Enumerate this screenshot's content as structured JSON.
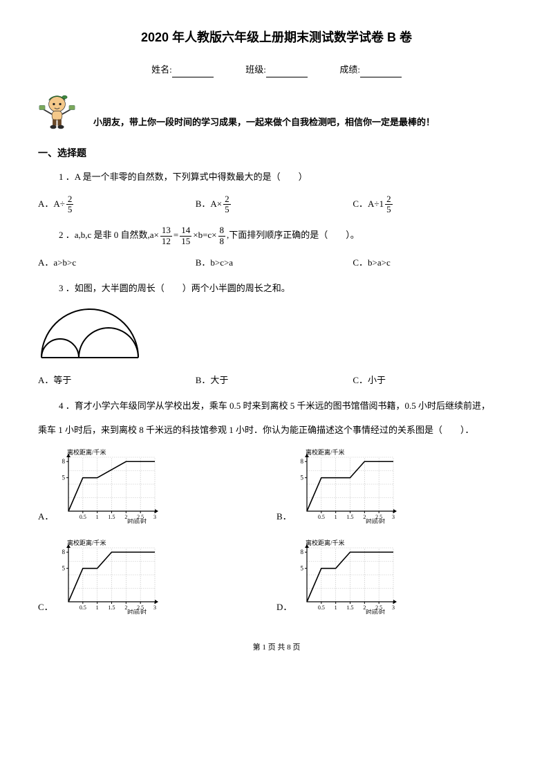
{
  "title": "2020 年人教版六年级上册期末测试数学试卷 B 卷",
  "info": {
    "name_label": "姓名:",
    "class_label": "班级:",
    "score_label": "成绩:"
  },
  "encouragement": "小朋友，带上你一段时间的学习成果，一起来做个自我检测吧，相信你一定是最棒的！",
  "section1_heading": "一、选择题",
  "q1": {
    "text": "1 ．A 是一个非零的自然数，下列算式中得数最大的是（　　）",
    "frac": {
      "num": "2",
      "den": "5"
    },
    "a_prefix": "A．A÷",
    "b_prefix": "B．A×",
    "c_prefix": "C．A÷1"
  },
  "q2": {
    "prefix": "2 ．a,b,c 是非 0 自然数,a×",
    "frac1": {
      "num": "13",
      "den": "12"
    },
    "eq": "=",
    "frac2": {
      "num": "14",
      "den": "15"
    },
    "mid": "×b=c×",
    "frac3": {
      "num": "8",
      "den": "8"
    },
    "suffix": ",下面排列顺序正确的是（　　）。",
    "choice_a": "A．a>b>c",
    "choice_b": "B．b>c>a",
    "choice_c": "C．b>a>c"
  },
  "q3": {
    "text": "3 ．如图，大半圆的周长（　　）两个小半圆的周长之和。",
    "choice_a": "A．等于",
    "choice_b": "B．大于",
    "choice_c": "C．小于"
  },
  "q4": {
    "line1": "4 ．育才小学六年级同学从学校出发，乘车 0.5 时来到离校 5 千米远的图书馆借阅书籍，0.5 小时后继续前进，",
    "line2": "乘车 1 小时后，来到离校 8 千米远的科技馆参观 1 小时．你认为能正确描述这个事情经过的关系图是（　　）．",
    "labels": {
      "a": "A．",
      "b": "B．",
      "c": "C．",
      "d": "D．"
    }
  },
  "graph": {
    "y_label": "离校距离/千米",
    "x_label": "时间/时",
    "x_ticks": [
      "0.5",
      "1",
      "1.5",
      "2",
      "2.5",
      "3"
    ],
    "y_ticks": [
      "8",
      "5"
    ],
    "axis_color": "#000000",
    "grid_color": "#bcbcbc",
    "line_color": "#000000",
    "width": 155,
    "height": 110,
    "paths": {
      "A": [
        [
          0,
          0
        ],
        [
          25,
          62
        ],
        [
          50,
          62
        ],
        [
          100,
          92
        ],
        [
          150,
          92
        ]
      ],
      "B": [
        [
          0,
          0
        ],
        [
          25,
          62
        ],
        [
          75,
          62
        ],
        [
          100,
          92
        ],
        [
          150,
          92
        ]
      ],
      "C": [
        [
          0,
          0
        ],
        [
          25,
          62
        ],
        [
          50,
          62
        ],
        [
          75,
          92
        ],
        [
          150,
          92
        ]
      ],
      "D": [
        [
          0,
          0
        ],
        [
          25,
          62
        ],
        [
          50,
          62
        ],
        [
          75,
          92
        ],
        [
          125,
          92
        ],
        [
          150,
          92
        ]
      ]
    }
  },
  "mascot": {
    "hat_color": "#3e8a3e",
    "skin_color": "#f4c88a",
    "pants_color": "#6a4a2a",
    "shoe_color": "#2a2a2a",
    "money_color": "#7aa85a"
  },
  "footer": "第 1 页 共 8 页"
}
